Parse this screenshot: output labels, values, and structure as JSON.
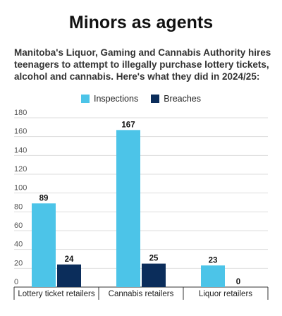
{
  "header": {
    "title": "Minors as agents",
    "subtitle": "Manitoba's Liquor, Gaming and Cannabis Authority hires teenagers to attempt to illegally purchase lottery tickets, alcohol and cannabis. Here's what they did in 2024/25:"
  },
  "colors": {
    "inspections": "#4cc4e8",
    "breaches": "#0b2d5b",
    "grid": "#dddddd",
    "axis": "#333333"
  },
  "chart_data": {
    "type": "bar",
    "categories": [
      "Lottery ticket retailers",
      "Cannabis retailers",
      "Liquor retailers"
    ],
    "series": [
      {
        "name": "Inspections",
        "values": [
          89,
          167,
          23
        ]
      },
      {
        "name": "Breaches",
        "values": [
          24,
          25,
          0
        ]
      }
    ],
    "ylim": [
      0,
      180
    ],
    "yticks": [
      0,
      20,
      40,
      60,
      80,
      100,
      120,
      140,
      160,
      180
    ],
    "grid": true,
    "legend": "top-center",
    "data_labels": true
  }
}
